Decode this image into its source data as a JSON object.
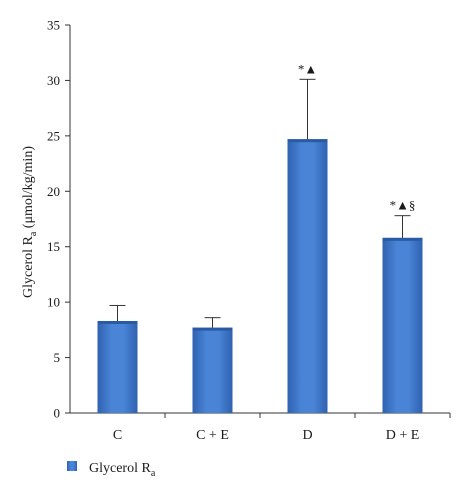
{
  "chart_data": {
    "type": "bar",
    "categories": [
      "C",
      "C + E",
      "D",
      "D + E"
    ],
    "series": [
      {
        "name": "Glycerol R",
        "name_sub": "a",
        "values": [
          8.3,
          7.7,
          24.7,
          15.8
        ],
        "errors": [
          1.4,
          0.9,
          5.4,
          2.0
        ],
        "color": "#3d75c9"
      }
    ],
    "annotations": [
      "",
      "",
      "*▲",
      "*▲§"
    ],
    "ylabel_main": "Glycerol R",
    "ylabel_sub": "a",
    "ylabel_unit": " (μmol/kg/min)",
    "ylim": [
      0,
      35
    ],
    "yticks": [
      0,
      5,
      10,
      15,
      20,
      25,
      30,
      35
    ],
    "grid": false,
    "legend_position": "bottom-left"
  }
}
